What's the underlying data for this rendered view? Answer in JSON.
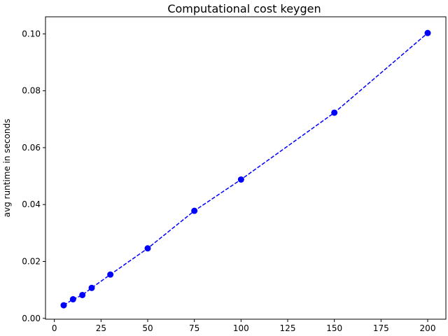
{
  "chart_data": {
    "type": "line",
    "title": "Computational cost keygen",
    "xlabel": "",
    "ylabel": "avg runtime in seconds",
    "xlim": [
      -4.75,
      209.75
    ],
    "ylim": [
      -0.0003,
      0.106
    ],
    "xticks": [
      0,
      25,
      50,
      75,
      100,
      125,
      150,
      175,
      200
    ],
    "yticks": [
      0.0,
      0.02,
      0.04,
      0.06,
      0.08,
      0.1
    ],
    "ytick_labels": [
      "0.00",
      "0.02",
      "0.04",
      "0.06",
      "0.08",
      "0.10"
    ],
    "grid": false,
    "series": [
      {
        "color": "#0000ff",
        "line_style": "dashed",
        "marker": "circle",
        "x": [
          5,
          10,
          15,
          20,
          30,
          50,
          75,
          100,
          150,
          200
        ],
        "y": [
          0.0046,
          0.0067,
          0.0082,
          0.0107,
          0.0154,
          0.0246,
          0.0378,
          0.0488,
          0.0723,
          0.1003
        ]
      }
    ]
  }
}
